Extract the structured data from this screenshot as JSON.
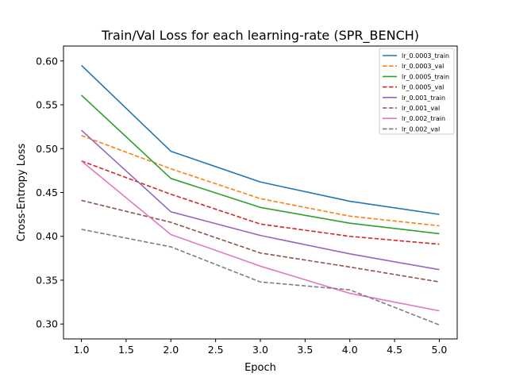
{
  "chart_data": {
    "type": "line",
    "title": "Train/Val Loss for each learning-rate (SPR_BENCH)",
    "xlabel": "Epoch",
    "ylabel": "Cross-Entropy Loss",
    "xlim": [
      0.8,
      5.2
    ],
    "ylim": [
      0.283,
      0.617
    ],
    "xticks": [
      1.0,
      1.5,
      2.0,
      2.5,
      3.0,
      3.5,
      4.0,
      4.5,
      5.0
    ],
    "xtick_labels": [
      "1.0",
      "1.5",
      "2.0",
      "2.5",
      "3.0",
      "3.5",
      "4.0",
      "4.5",
      "5.0"
    ],
    "yticks": [
      0.3,
      0.35,
      0.4,
      0.45,
      0.5,
      0.55,
      0.6
    ],
    "ytick_labels": [
      "0.30",
      "0.35",
      "0.40",
      "0.45",
      "0.50",
      "0.55",
      "0.60"
    ],
    "grid": false,
    "legend_position": "top-right",
    "x": [
      1,
      2,
      3,
      4,
      5
    ],
    "series": [
      {
        "name": "lr_0.0003_train",
        "color": "#1f77b4",
        "dash": "solid",
        "values": [
          0.595,
          0.497,
          0.462,
          0.44,
          0.425
        ]
      },
      {
        "name": "lr_0.0003_val",
        "color": "#ff7f0e",
        "dash": "dashed",
        "values": [
          0.515,
          0.477,
          0.443,
          0.423,
          0.412
        ]
      },
      {
        "name": "lr_0.0005_train",
        "color": "#2ca02c",
        "dash": "solid",
        "values": [
          0.561,
          0.466,
          0.433,
          0.415,
          0.403
        ]
      },
      {
        "name": "lr_0.0005_val",
        "color": "#d62728",
        "dash": "dashed",
        "values": [
          0.486,
          0.448,
          0.414,
          0.4,
          0.391
        ]
      },
      {
        "name": "lr_0.001_train",
        "color": "#9467bd",
        "dash": "solid",
        "values": [
          0.521,
          0.428,
          0.401,
          0.38,
          0.362
        ]
      },
      {
        "name": "lr_0.001_val",
        "color": "#8c564b",
        "dash": "dashed",
        "values": [
          0.441,
          0.416,
          0.381,
          0.365,
          0.348
        ]
      },
      {
        "name": "lr_0.002_train",
        "color": "#e377c2",
        "dash": "solid",
        "values": [
          0.486,
          0.402,
          0.366,
          0.335,
          0.315
        ]
      },
      {
        "name": "lr_0.002_val",
        "color": "#7f7f7f",
        "dash": "dashed",
        "values": [
          0.408,
          0.388,
          0.348,
          0.339,
          0.299
        ]
      }
    ]
  }
}
